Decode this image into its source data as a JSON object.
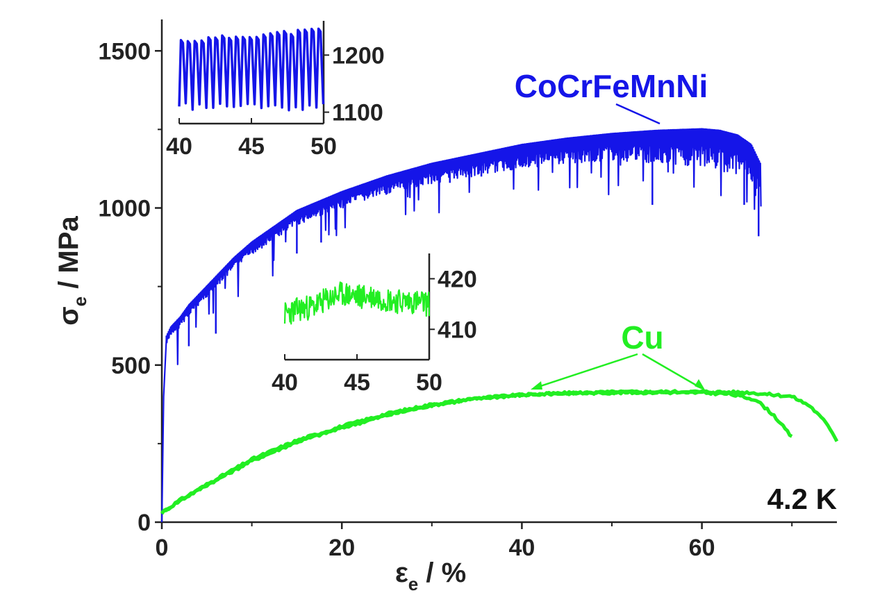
{
  "chart_data": [
    {
      "type": "line",
      "id": "main",
      "xlabel": "ε",
      "xlabel_sub": "e",
      "xlabel_unit": " / %",
      "ylabel": "σ",
      "ylabel_sub": "e",
      "ylabel_unit": " / MPa",
      "xlim": [
        0,
        75
      ],
      "ylim": [
        0,
        1600
      ],
      "xticks": [
        0,
        20,
        40,
        60
      ],
      "yticks": [
        0,
        500,
        1000,
        1500
      ],
      "annotation": "4.2 K",
      "series": [
        {
          "name": "CoCrFeMnNi",
          "color": "#1515e8",
          "serration": true,
          "x": [
            0,
            0.2,
            0.5,
            1,
            2,
            3,
            5,
            8,
            10,
            12,
            15,
            20,
            25,
            30,
            35,
            40,
            45,
            50,
            55,
            60,
            62,
            64,
            65.5,
            66.5
          ],
          "y": [
            0,
            400,
            580,
            610,
            640,
            680,
            740,
            830,
            880,
            920,
            980,
            1040,
            1090,
            1130,
            1160,
            1190,
            1210,
            1225,
            1235,
            1240,
            1235,
            1220,
            1190,
            1130
          ]
        },
        {
          "name": "Cu",
          "color": "#22ee22",
          "x": [
            0,
            2,
            5,
            10,
            15,
            20,
            25,
            30,
            35,
            40,
            45,
            50,
            55,
            60,
            63,
            66,
            68,
            70
          ],
          "y": [
            30,
            70,
            120,
            200,
            260,
            305,
            345,
            375,
            395,
            405,
            410,
            412,
            413,
            412,
            408,
            390,
            340,
            270
          ]
        },
        {
          "name": "Cu",
          "color": "#22ee22",
          "x": [
            0,
            2,
            5,
            10,
            15,
            20,
            25,
            30,
            35,
            40,
            45,
            50,
            55,
            60,
            65,
            70,
            72,
            74,
            75
          ],
          "y": [
            30,
            68,
            118,
            195,
            255,
            300,
            340,
            372,
            393,
            405,
            411,
            414,
            415,
            415,
            413,
            400,
            370,
            310,
            260
          ]
        }
      ],
      "labels": [
        {
          "text": "CoCrFeMnNi",
          "color": "#1515e8"
        },
        {
          "text": "Cu",
          "color": "#22ee22"
        }
      ]
    },
    {
      "type": "line",
      "id": "inset_cocrfemnni",
      "xlim": [
        40,
        50
      ],
      "ylim": [
        1080,
        1260
      ],
      "xticks": [
        40,
        45,
        50
      ],
      "yticks": [
        1100,
        1200
      ],
      "series": [
        {
          "name": "CoCrFeMnNi",
          "color": "#1515e8",
          "peak_start": 1225,
          "peak_end": 1245,
          "valley": 1110,
          "cycles": 21
        }
      ]
    },
    {
      "type": "line",
      "id": "inset_cu",
      "xlim": [
        40,
        50
      ],
      "ylim": [
        404,
        425
      ],
      "xticks": [
        40,
        45,
        50
      ],
      "yticks": [
        410,
        420
      ],
      "series": [
        {
          "name": "Cu",
          "color": "#22ee22",
          "x": [
            40,
            41,
            42,
            43,
            44,
            45,
            46,
            47,
            48,
            49,
            50
          ],
          "y": [
            413,
            414,
            414.5,
            416,
            417,
            416.5,
            416.5,
            416,
            415.5,
            415.5,
            415
          ]
        }
      ]
    }
  ]
}
